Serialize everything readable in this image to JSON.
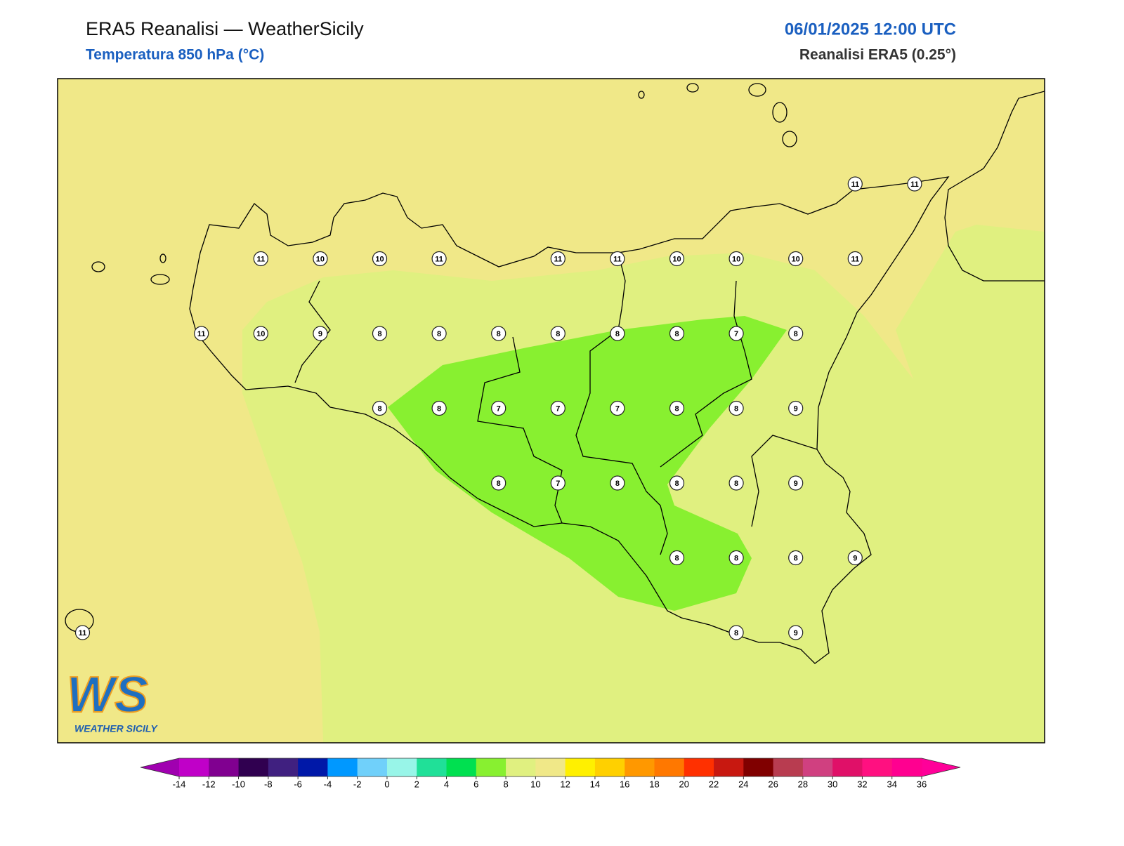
{
  "header": {
    "title": "ERA5 Reanalisi — WeatherSicily",
    "subtitle": "Temperatura 850 hPa (°C)",
    "datetime": "06/01/2025 12:00 UTC",
    "source": "Reanalisi ERA5 (0.25°)"
  },
  "grid": {
    "rows": [
      [
        null,
        null,
        null,
        null,
        null,
        null,
        null,
        null,
        null,
        null,
        null,
        null,
        null,
        11,
        11
      ],
      [
        null,
        null,
        null,
        11,
        10,
        10,
        11,
        null,
        11,
        11,
        10,
        10,
        10,
        11,
        null
      ],
      [
        null,
        null,
        11,
        10,
        9,
        8,
        8,
        8,
        8,
        8,
        8,
        7,
        8,
        null,
        null
      ],
      [
        null,
        null,
        null,
        null,
        null,
        8,
        8,
        7,
        7,
        7,
        8,
        8,
        9,
        null,
        null
      ],
      [
        null,
        null,
        null,
        null,
        null,
        null,
        null,
        8,
        7,
        8,
        8,
        8,
        9,
        null,
        null
      ],
      [
        null,
        null,
        null,
        null,
        null,
        null,
        null,
        null,
        null,
        null,
        8,
        8,
        8,
        9,
        null
      ],
      [
        11,
        null,
        null,
        null,
        null,
        null,
        null,
        null,
        null,
        null,
        null,
        8,
        9,
        null,
        null
      ]
    ]
  },
  "colorbar": {
    "ticks": [
      -14,
      -12,
      -10,
      -8,
      -6,
      -4,
      -2,
      0,
      2,
      4,
      6,
      8,
      10,
      12,
      14,
      16,
      18,
      20,
      22,
      24,
      26,
      28,
      30,
      32,
      34,
      36
    ],
    "colors": [
      "#c000c8",
      "#800090",
      "#300050",
      "#402080",
      "#0018a8",
      "#0098ff",
      "#70d0fa",
      "#98f5e8",
      "#20e098",
      "#00e050",
      "#88f030",
      "#e0f080",
      "#f0e888",
      "#fff000",
      "#ffd000",
      "#ff9800",
      "#ff7800",
      "#ff3000",
      "#c81810",
      "#800000",
      "#b83c50",
      "#d04080",
      "#e01068",
      "#ff1080",
      "#ff0090"
    ],
    "extend_min_color": "#a000b0",
    "extend_max_color": "#ff0099"
  },
  "logo": {
    "mark": "WS",
    "name": "WEATHER SICILY"
  }
}
